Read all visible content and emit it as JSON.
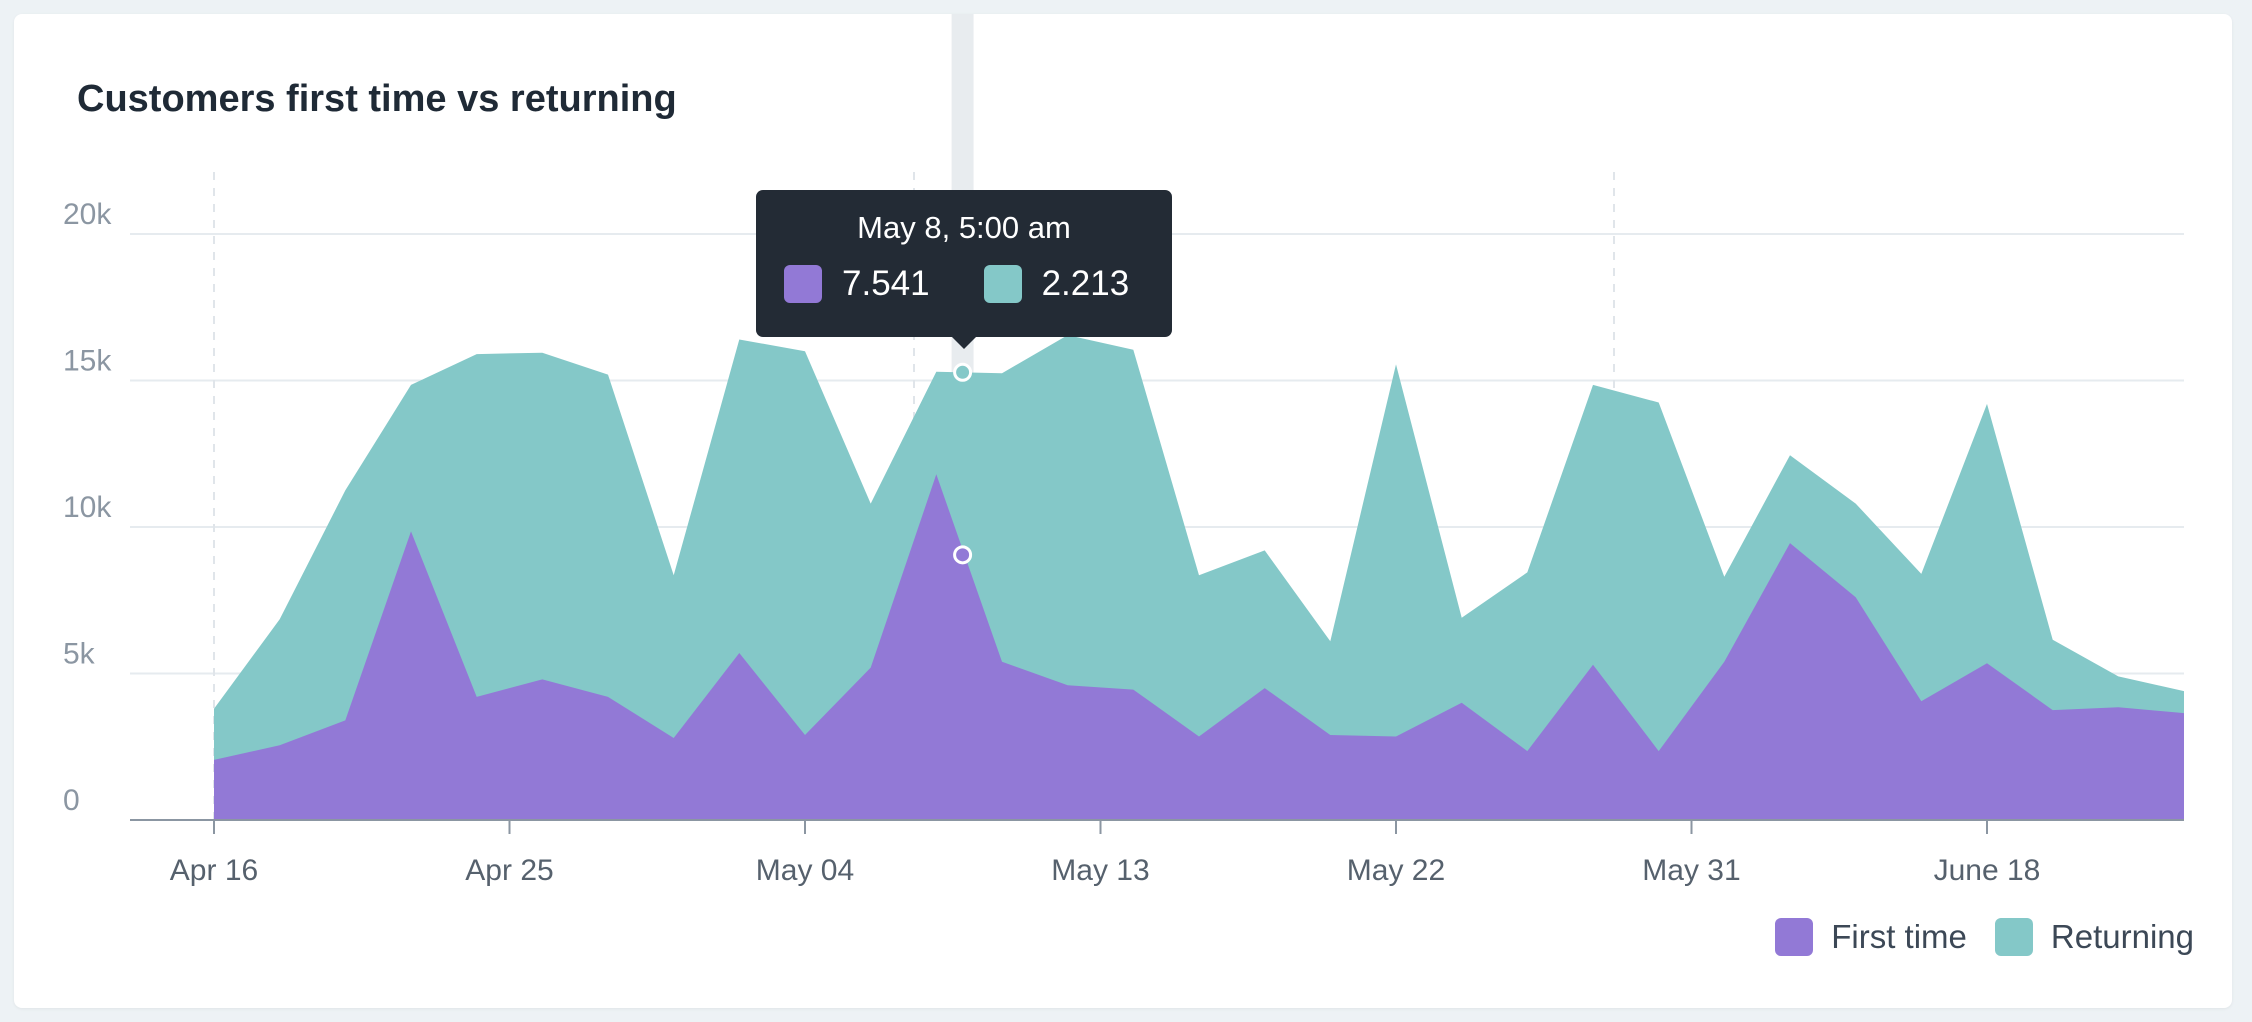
{
  "chart_data": {
    "type": "area",
    "title": "Customers first time vs returning",
    "xlabel": "",
    "ylabel": "",
    "stacked": true,
    "ylim": [
      0,
      20000
    ],
    "yticks": [
      {
        "value": 0,
        "label": "0"
      },
      {
        "value": 5000,
        "label": "5k"
      },
      {
        "value": 10000,
        "label": "10k"
      },
      {
        "value": 15000,
        "label": "15k"
      },
      {
        "value": 20000,
        "label": "20k"
      }
    ],
    "xtick_labels": [
      "Apr 16",
      "Apr 25",
      "May 04",
      "May 13",
      "May 22",
      "May 31",
      "June 18"
    ],
    "xtick_index": [
      0,
      4.5,
      9,
      13.5,
      18,
      22.5,
      27
    ],
    "x_count": 31,
    "series": [
      {
        "name": "First time",
        "color": "#9279d6",
        "values": [
          2050,
          2550,
          3400,
          9850,
          4200,
          4800,
          4200,
          2800,
          5700,
          2900,
          5200,
          11800,
          5400,
          4600,
          4450,
          2850,
          4500,
          2900,
          2850,
          4000,
          2350,
          5300,
          2350,
          5400,
          9450,
          7600,
          4050,
          5350,
          3750,
          3850,
          3650
        ]
      },
      {
        "name": "Returning",
        "color": "#84c8c8",
        "values": [
          1750,
          4300,
          7850,
          5000,
          11700,
          11150,
          11000,
          5550,
          10700,
          13100,
          5600,
          3500,
          9850,
          11950,
          11600,
          5500,
          4700,
          3200,
          12700,
          2900,
          6100,
          9550,
          11900,
          2900,
          3000,
          3200,
          4350,
          8850,
          2400,
          1050,
          750
        ]
      }
    ],
    "tooltip": {
      "date": "May 8, 5:00 am",
      "index": 11.4,
      "first_time": "7.541",
      "returning": "2.213"
    },
    "legend_position": "bottom-right",
    "grid": true
  },
  "colors": {
    "first_time": "#9279d6",
    "returning": "#84c8c8",
    "grid": "#e6ebef",
    "axis": "#8b96a2",
    "tooltip_bg": "#232b35"
  }
}
